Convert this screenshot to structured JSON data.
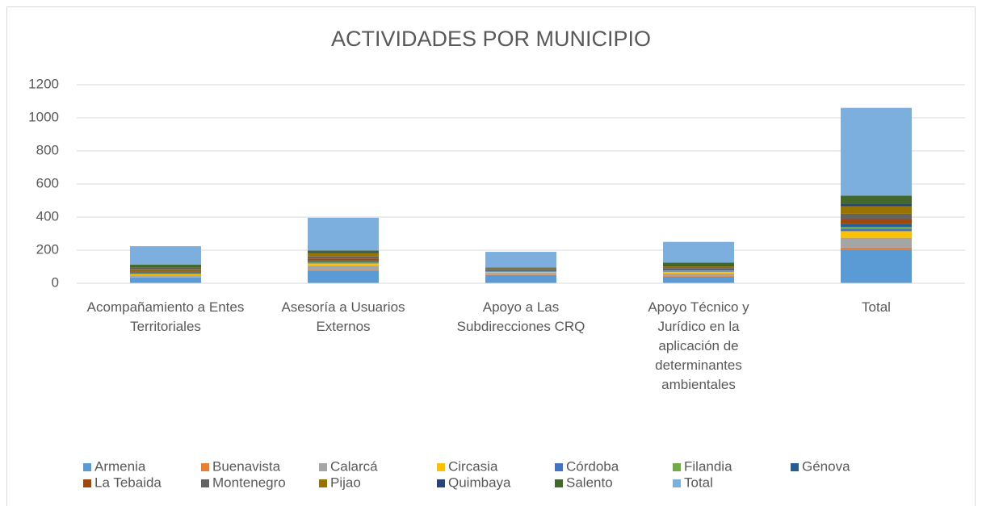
{
  "chart_data": {
    "type": "stacked_bar",
    "title": "ACTIVIDADES POR MUNICIPIO",
    "categories": [
      "Acompañamiento a Entes Territoriales",
      "Asesoría a Usuarios Externos",
      "Apoyo a Las Subdirecciones CRQ",
      "Apoyo Técnico y Jurídico en la aplicación de determinantes ambientales",
      "Total"
    ],
    "series": [
      {
        "name": "Armenia",
        "color": "#5b9bd5",
        "values": [
          35,
          75,
          50,
          40,
          200
        ]
      },
      {
        "name": "Buenavista",
        "color": "#ed7d31",
        "values": [
          3,
          5,
          3,
          4,
          15
        ]
      },
      {
        "name": "Calarcá",
        "color": "#a5a5a5",
        "values": [
          10,
          25,
          10,
          15,
          60
        ]
      },
      {
        "name": "Circasia",
        "color": "#ffc000",
        "values": [
          8,
          15,
          6,
          11,
          40
        ]
      },
      {
        "name": "Córdoba",
        "color": "#4472c4",
        "values": [
          3,
          6,
          2,
          4,
          15
        ]
      },
      {
        "name": "Filandia",
        "color": "#70ad47",
        "values": [
          2,
          4,
          1,
          3,
          10
        ]
      },
      {
        "name": "Génova",
        "color": "#255e91",
        "values": [
          4,
          8,
          3,
          5,
          20
        ]
      },
      {
        "name": "La Tebaida",
        "color": "#9e480e",
        "values": [
          7,
          12,
          4,
          7,
          30
        ]
      },
      {
        "name": "Montenegro",
        "color": "#636363",
        "values": [
          8,
          12,
          4,
          6,
          30
        ]
      },
      {
        "name": "Pijao",
        "color": "#997300",
        "values": [
          10,
          20,
          8,
          7,
          45
        ]
      },
      {
        "name": "Quimbaya",
        "color": "#264478",
        "values": [
          4,
          6,
          2,
          3,
          15
        ]
      },
      {
        "name": "Salento",
        "color": "#43682b",
        "values": [
          18,
          10,
          2,
          20,
          50
        ]
      },
      {
        "name": "Total",
        "color": "#7cafdd",
        "values": [
          112,
          198,
          95,
          125,
          530
        ]
      }
    ],
    "ylim": [
      0,
      1200
    ],
    "yticks": [
      0,
      200,
      400,
      600,
      800,
      1000,
      1200
    ],
    "grid": true,
    "legend": "bottom"
  }
}
